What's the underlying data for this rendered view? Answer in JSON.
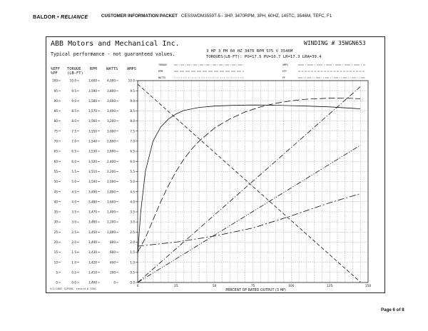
{
  "header": {
    "brand_main": "BALDOR",
    "brand_sep": "•",
    "brand_sub": "RELIANCE",
    "title": "CUSTOMER INFORMATION PACKET",
    "description": "CESSWDM3559T-5 - 3HP, 3470RPM, 3PH, 60HZ, 145TC, 3546M, TEFC, F1"
  },
  "document": {
    "company": "ABB Motors and Mechanical Inc.",
    "typical": "Typical performance - not guaranteed values.",
    "winding": "WINDING # 35WGN653",
    "rating": "3 HP  3 PH  60 HZ  3470 RPM  575 V  3546M",
    "torques": "TORQUES(LB-FT): PO=17.5  PU=10.7  LR=17.3  LRA=39.4",
    "footnote": "5/2/2007 SCPS98, record # 3381",
    "page": "Page 6 of 8"
  },
  "chart_data": {
    "type": "line",
    "xlabel": "PERCENT OF RATED OUTPUT (3 HP)",
    "xlim": [
      0,
      150
    ],
    "x_ticks": [
      "0",
      "25",
      "50",
      "75",
      "100",
      "125",
      "150"
    ],
    "axis_headers": [
      "%EFF",
      "TORQUE",
      "RPM",
      "WATTS",
      "AMPS"
    ],
    "axis_headers_sub": [
      "%PF",
      "(LB-FT)"
    ],
    "axes": [
      {
        "name": "%EFF / %PF",
        "min": 0,
        "max": 100,
        "ticks": [
          "100",
          "95",
          "90",
          "85",
          "80",
          "75",
          "70",
          "65",
          "60",
          "55",
          "50",
          "45",
          "40",
          "35",
          "30",
          "25",
          "20",
          "15",
          "10",
          "5",
          "0"
        ]
      },
      {
        "name": "TORQUE (LB-FT)",
        "min": 0,
        "max": 10,
        "ticks": [
          "10.0",
          "9.5",
          "9.0",
          "8.5",
          "8.0",
          "7.5",
          "7.0",
          "6.5",
          "6.0",
          "5.5",
          "5.0",
          "4.5",
          "4.0",
          "3.5",
          "3.0",
          "2.5",
          "2.0",
          "1.5",
          "1.0",
          "0.5",
          "0.0"
        ]
      },
      {
        "name": "RPM",
        "min": 3400,
        "max": 3600,
        "ticks": [
          "3,600",
          "3,590",
          "3,580",
          "3,570",
          "3,560",
          "3,550",
          "3,540",
          "3,530",
          "3,520",
          "3,510",
          "3,500",
          "3,490",
          "3,480",
          "3,470",
          "3,460",
          "3,450",
          "3,440",
          "3,430",
          "3,420",
          "3,410",
          "3,400"
        ]
      },
      {
        "name": "WATTS",
        "min": 0,
        "max": 4000,
        "ticks": [
          "4,000",
          "3,800",
          "3,600",
          "3,400",
          "3,200",
          "3,000",
          "2,800",
          "2,600",
          "2,400",
          "2,200",
          "2,000",
          "1,800",
          "1,600",
          "1,400",
          "1,200",
          "1,000",
          "800",
          "600",
          "400",
          "200",
          "0"
        ]
      },
      {
        "name": "AMPS",
        "min": 0,
        "max": 10,
        "ticks": [
          "10.0",
          "9.5",
          "9.0",
          "8.5",
          "8.0",
          "7.5",
          "7.0",
          "6.5",
          "6.0",
          "5.5",
          "5.0",
          "4.5",
          "4.0",
          "3.5",
          "3.0",
          "2.5",
          "2.0",
          "1.5",
          "1.0",
          "0.5",
          "0.0"
        ]
      }
    ],
    "legend": [
      "TORQUE",
      "RPM",
      "WATTS",
      "AMPS",
      "EFF",
      "PF"
    ],
    "series": [
      {
        "scale": "%EFF / %PF",
        "style": "solid",
        "x": [
          0,
          2,
          5,
          10,
          15,
          20,
          25,
          30,
          40,
          50,
          60,
          75,
          90,
          100,
          110,
          125,
          140,
          145
        ],
        "y": [
          14,
          35,
          55,
          70,
          77,
          81,
          83.5,
          85.2,
          86.7,
          87.4,
          87.7,
          87.9,
          87.8,
          87.6,
          87.4,
          87,
          86.3,
          86
        ]
      },
      {
        "scale": "%EFF / %PF",
        "style": "longdash",
        "x": [
          0,
          5,
          10,
          15,
          20,
          25,
          30,
          35,
          40,
          50,
          60,
          70,
          80,
          90,
          100,
          110,
          125,
          140,
          145
        ],
        "y": [
          15,
          22,
          31,
          40,
          48,
          55,
          61,
          66,
          70,
          76.5,
          81,
          84.5,
          87,
          88.8,
          90,
          90.8,
          91.3,
          91.2,
          91
        ]
      },
      {
        "scale": "TORQUE (LB-FT)",
        "style": "dashdot",
        "x": [
          0,
          145
        ],
        "y": [
          0,
          9.7
        ]
      },
      {
        "scale": "RPM",
        "style": "dash",
        "x": [
          0,
          145
        ],
        "y": [
          3596.5,
          3400.5
        ]
      },
      {
        "scale": "WATTS",
        "style": "dashdotdot",
        "x": [
          0,
          145
        ],
        "y": [
          0,
          2720
        ]
      },
      {
        "scale": "AMPS",
        "style": "dashmixed",
        "x": [
          0,
          25,
          50,
          75,
          100,
          125,
          145
        ],
        "y": [
          1.8,
          2.0,
          2.3,
          2.7,
          3.3,
          3.95,
          4.4
        ]
      }
    ]
  }
}
